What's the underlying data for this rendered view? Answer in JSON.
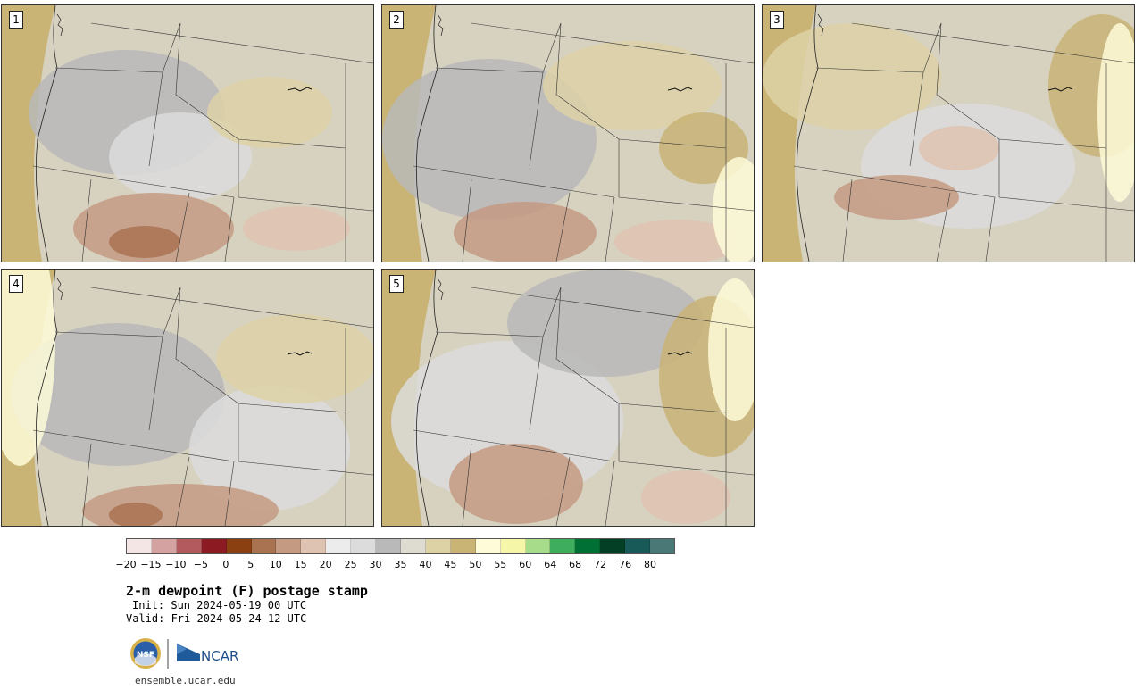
{
  "panels": [
    {
      "label": "1"
    },
    {
      "label": "2"
    },
    {
      "label": "3"
    },
    {
      "label": "4"
    },
    {
      "label": "5"
    }
  ],
  "legend": {
    "colors": [
      "#f4e6e4",
      "#d4a3a1",
      "#b35a5e",
      "#8c1a22",
      "#8b4012",
      "#a97352",
      "#c49a82",
      "#dfc3b2",
      "#ececec",
      "#dcdcdc",
      "#b9b9b9",
      "#dedcd0",
      "#ddd1a6",
      "#c9b375",
      "#fefbd8",
      "#f6f6a8",
      "#a7dc8b",
      "#3ead5e",
      "#017035",
      "#033f25",
      "#185a58",
      "#4a7877"
    ],
    "tick_labels": [
      "−20",
      "−15",
      "−10",
      "−5",
      "0",
      "5",
      "10",
      "15",
      "20",
      "25",
      "30",
      "35",
      "40",
      "45",
      "50",
      "55",
      "60",
      "64",
      "68",
      "72",
      "76",
      "80"
    ]
  },
  "title": "2-m dewpoint (F) postage stamp",
  "init": "Init: Sun 2024-05-19 00 UTC",
  "valid": "Valid: Fri 2024-05-24 12 UTC",
  "logos": {
    "nsf": "NSF",
    "ncar": "NCAR"
  },
  "footer_url": "ensemble.ucar.edu"
}
